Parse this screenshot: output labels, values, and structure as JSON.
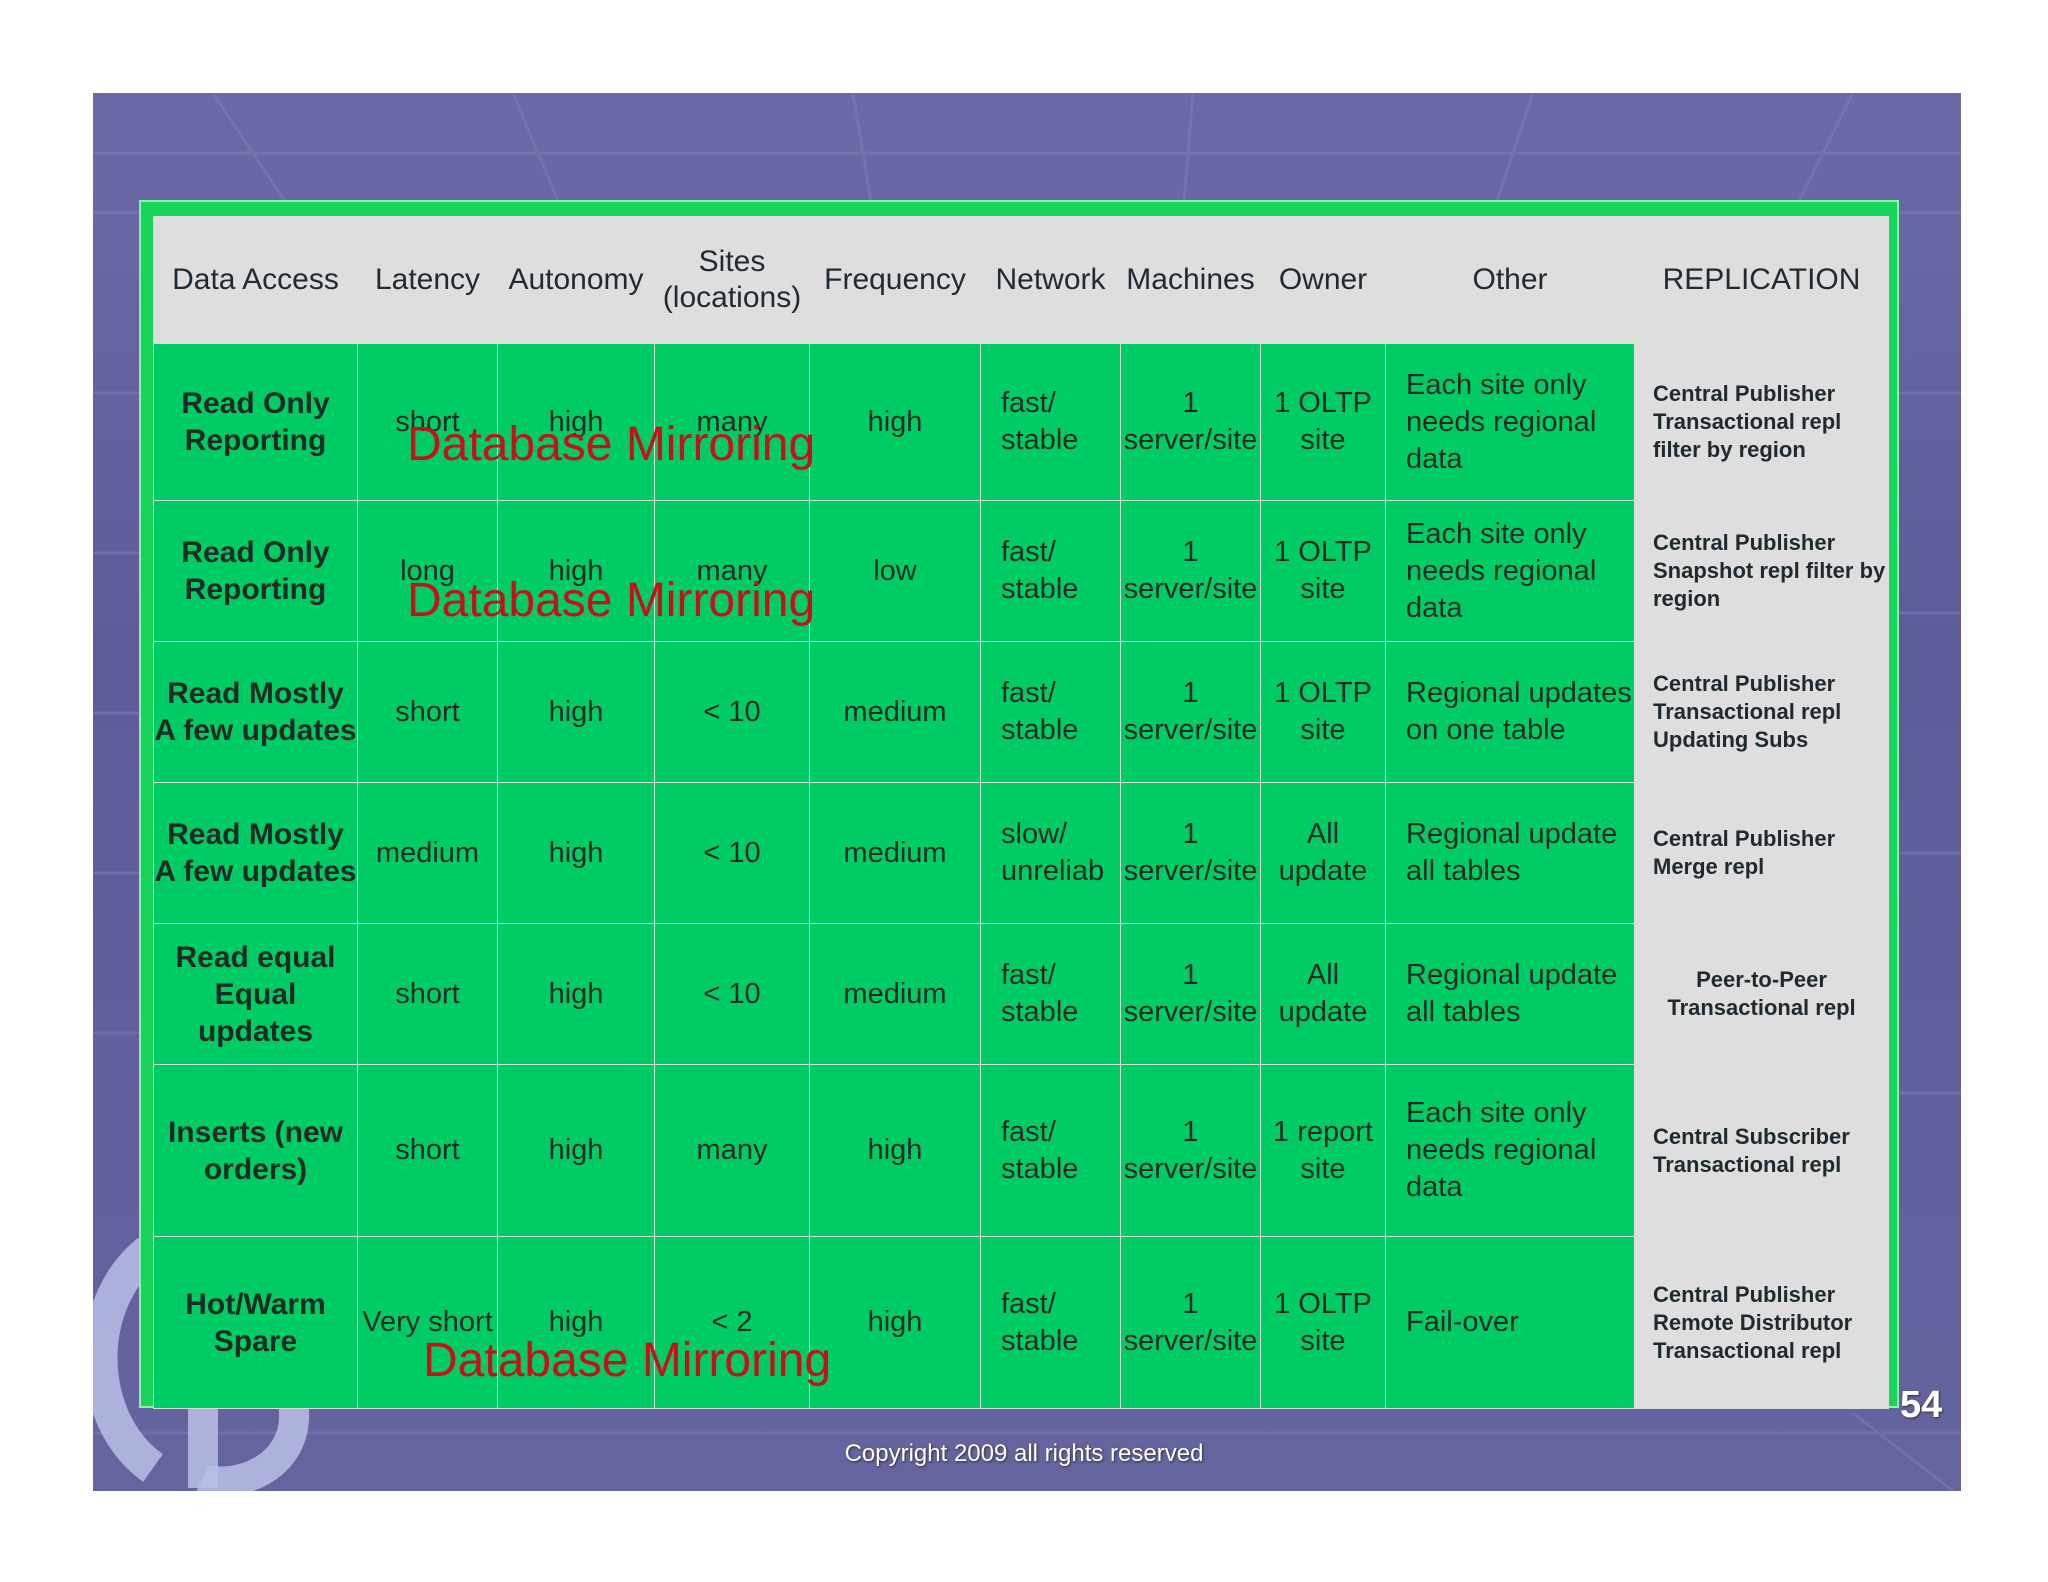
{
  "header": [
    "Data Access",
    "Latency",
    "Autonomy",
    "Sites (locations)",
    "Frequency",
    "Network",
    "Machines",
    "Owner",
    "Other",
    "REPLICATION"
  ],
  "rows": [
    {
      "access": "Read Only Reporting",
      "latency": "short",
      "autonomy": "high",
      "sites": "many",
      "frequency": "high",
      "network": "fast/ stable",
      "machines": "1 server/site",
      "owner": "1 OLTP site",
      "other": "Each site only needs regional data",
      "replication": "Central Publisher Transactional repl filter by region"
    },
    {
      "access": "Read Only Reporting",
      "latency": "long",
      "autonomy": "high",
      "sites": "many",
      "frequency": "low",
      "network": "fast/ stable",
      "machines": "1 server/site",
      "owner": "1 OLTP site",
      "other": "Each site only needs regional data",
      "replication": "Central Publisher Snapshot repl filter by region"
    },
    {
      "access": "Read Mostly A few updates",
      "latency": "short",
      "autonomy": "high",
      "sites": "< 10",
      "frequency": "medium",
      "network": "fast/ stable",
      "machines": "1 server/site",
      "owner": "1 OLTP site",
      "other": "Regional updates on  one table",
      "replication": "Central Publisher Transactional repl Updating Subs"
    },
    {
      "access": "Read Mostly A few updates",
      "latency": "medium",
      "autonomy": "high",
      "sites": "< 10",
      "frequency": "medium",
      "network": "slow/ unreliab",
      "machines": "1 server/site",
      "owner": "All update",
      "other": "Regional update all tables",
      "replication": "Central Publisher Merge repl"
    },
    {
      "access": "Read equal Equal updates",
      "latency": "short",
      "autonomy": "high",
      "sites": "< 10",
      "frequency": "medium",
      "network": "fast/ stable",
      "machines": "1 server/site",
      "owner": "All update",
      "other": "Regional update all tables",
      "replication": "Peer-to-Peer Transactional repl"
    },
    {
      "access": "Inserts (new orders)",
      "latency": "short",
      "autonomy": "high",
      "sites": "many",
      "frequency": "high",
      "network": "fast/ stable",
      "machines": "1 server/site",
      "owner": "1 report site",
      "other": "Each site only needs regional data",
      "replication": "Central Subscriber Transactional repl"
    },
    {
      "access": "Hot/Warm Spare",
      "latency": "Very short",
      "autonomy": "high",
      "sites": "< 2",
      "frequency": "high",
      "network": "fast/ stable",
      "machines": "1 server/site",
      "owner": "1 OLTP site",
      "other": "Fail-over",
      "replication": "Central Publisher Remote Distributor Transactional repl"
    }
  ],
  "overlay_label": "Database Mirroring",
  "page_number": "54",
  "copyright": "Copyright 2009 all rights reserved",
  "colors": {
    "table_green": "#00cc66",
    "header_gray": "#dedede",
    "overlay_red": "#c8101a",
    "slide_purple": "#6a6aa6"
  }
}
